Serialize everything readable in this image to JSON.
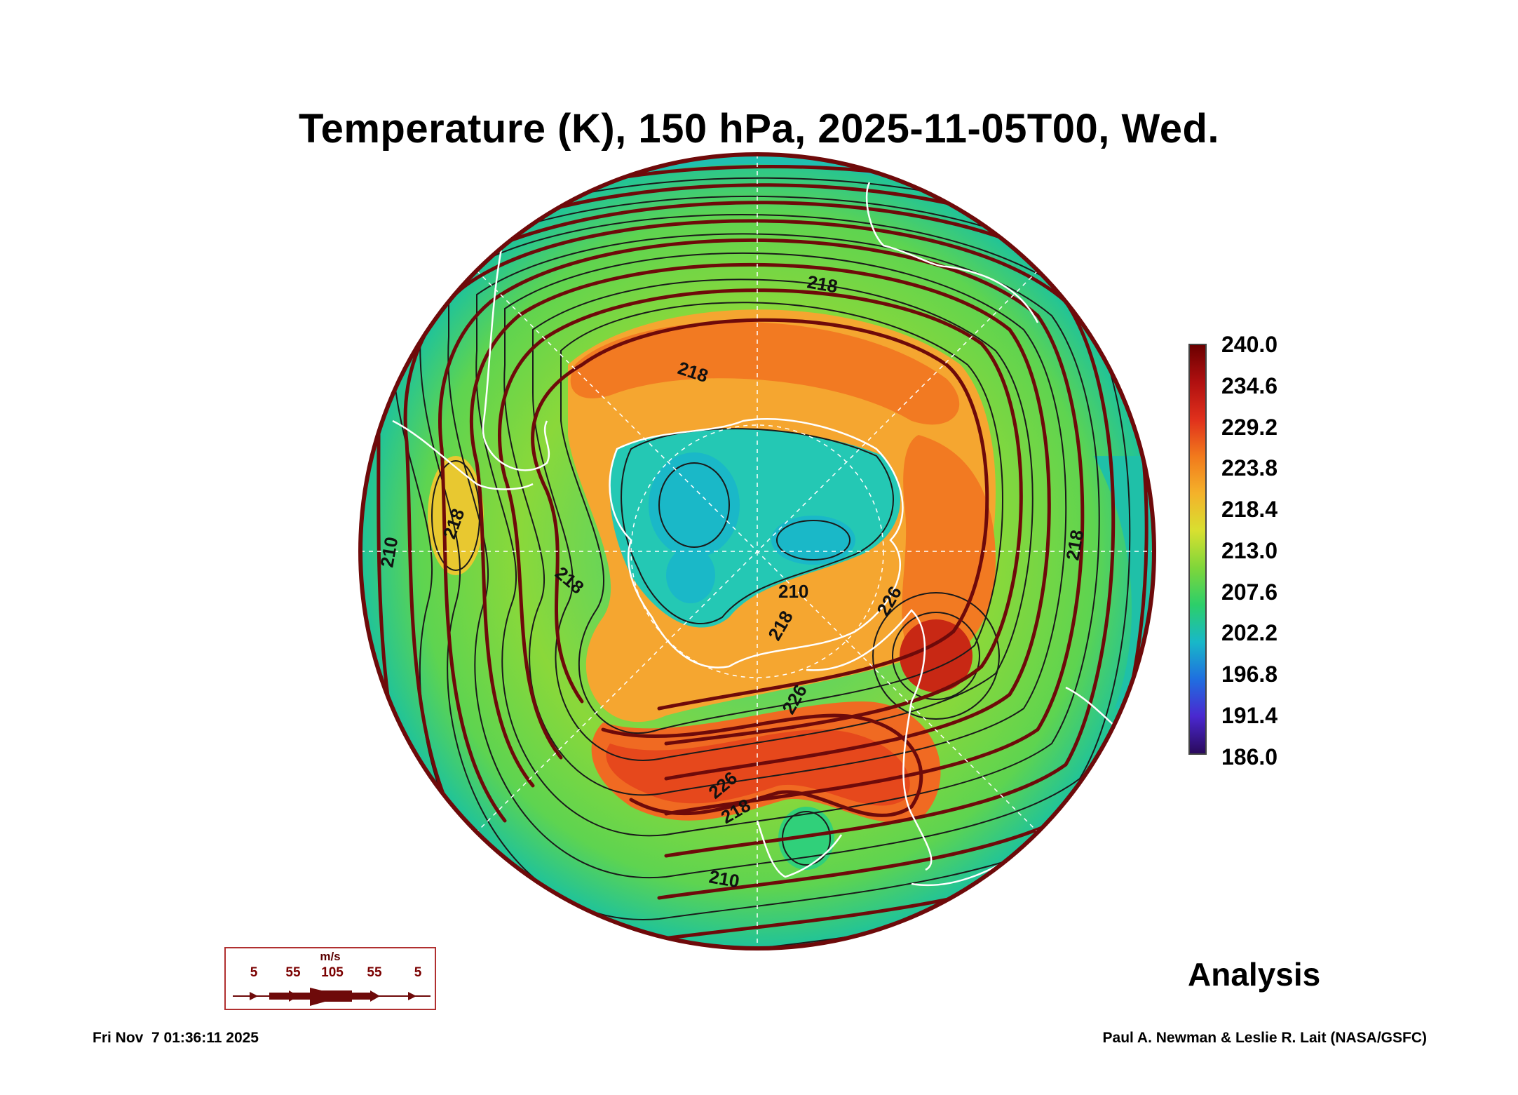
{
  "title": "Temperature (K), 150 hPa, 2025-11-05T00, Wed.",
  "colorbar": {
    "labels": [
      "240.0",
      "234.6",
      "229.2",
      "223.8",
      "218.4",
      "213.0",
      "207.6",
      "202.2",
      "196.8",
      "191.4",
      "186.0"
    ],
    "gradient": [
      "#6b0000",
      "#b01010",
      "#e0301c",
      "#f27a1c",
      "#f4b22a",
      "#d8e030",
      "#7fd63a",
      "#2ccf6a",
      "#18b8c8",
      "#1f6fe0",
      "#4a28d0",
      "#2a0a5c"
    ]
  },
  "contour_labels": [
    {
      "text": "218"
    },
    {
      "text": "218"
    },
    {
      "text": "218"
    },
    {
      "text": "218"
    },
    {
      "text": "218"
    },
    {
      "text": "210"
    },
    {
      "text": "210"
    },
    {
      "text": "210"
    },
    {
      "text": "226"
    },
    {
      "text": "226"
    },
    {
      "text": "226"
    },
    {
      "text": "218"
    },
    {
      "text": "218"
    }
  ],
  "wind_legend": {
    "unit": "m/s",
    "values": [
      "5",
      "55",
      "105",
      "55",
      "5"
    ]
  },
  "analysis_label": "Analysis",
  "footer": {
    "timestamp": "Fri Nov  7 01:36:11 2025",
    "credit": "Paul A. Newman & Leslie R. Lait (NASA/GSFC)"
  },
  "colors": {
    "streamline": "#6e0a0a",
    "contour": "#1a1a1a",
    "coastline": "#ffffff"
  }
}
